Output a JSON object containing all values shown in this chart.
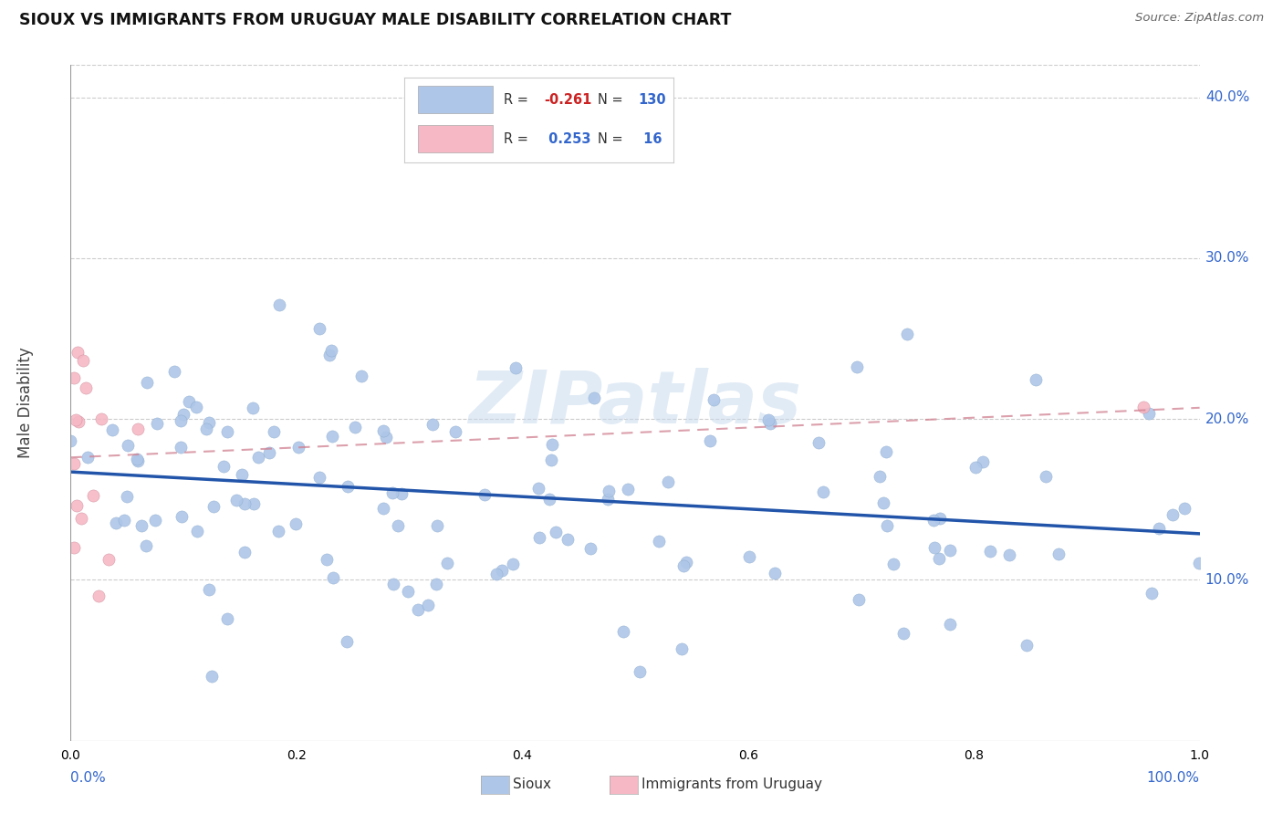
{
  "title": "SIOUX VS IMMIGRANTS FROM URUGUAY MALE DISABILITY CORRELATION CHART",
  "source_text": "Source: ZipAtlas.com",
  "ylabel": "Male Disability",
  "xlim": [
    0,
    1.0
  ],
  "ylim": [
    0.0,
    0.42
  ],
  "y_ticks": [
    0.1,
    0.2,
    0.3,
    0.4
  ],
  "y_tick_labels": [
    "10.0%",
    "20.0%",
    "30.0%",
    "40.0%"
  ],
  "sioux_R": -0.261,
  "sioux_N": 130,
  "uruguay_R": 0.253,
  "uruguay_N": 16,
  "sioux_color": "#aec6e8",
  "sioux_line_color": "#2255aa",
  "uruguay_color": "#f5b8c4",
  "uruguay_line_color": "#d08090",
  "watermark": "ZIPatlas",
  "background_color": "#ffffff",
  "legend_R1_label": "R = -0.261",
  "legend_N1_label": "N = 130",
  "legend_R2_label": "R =  0.253",
  "legend_N2_label": "N =  16",
  "bottom_legend1": "Sioux",
  "bottom_legend2": "Immigrants from Uruguay"
}
